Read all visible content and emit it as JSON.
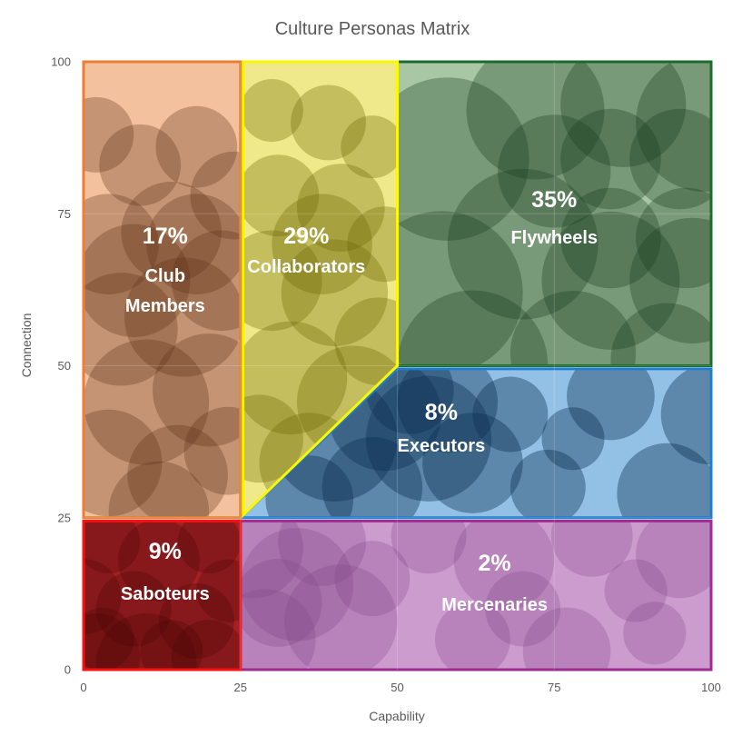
{
  "title": "Culture Personas Matrix",
  "chart_data": {
    "type": "scatter",
    "subtype": "quadrant-bubble-matrix",
    "title": "Culture Personas Matrix",
    "xlabel": "Capability",
    "ylabel": "Connection",
    "xlim": [
      0,
      100
    ],
    "ylim": [
      0,
      100
    ],
    "xticks": [
      "0",
      "25",
      "50",
      "75",
      "100"
    ],
    "yticks": [
      "0",
      "25",
      "50",
      "75",
      "100"
    ],
    "xtick_values": [
      0,
      25,
      50,
      75,
      100
    ],
    "ytick_values": [
      0,
      25,
      50,
      75,
      100
    ],
    "grid": true,
    "legend": "none",
    "regions": [
      {
        "id": "flywheels",
        "name": "Flywheels",
        "percent_label": "35%",
        "share_pct": 35,
        "x_range": [
          50,
          100
        ],
        "y_range": [
          50,
          100
        ],
        "polygon": [
          [
            50,
            50
          ],
          [
            100,
            50
          ],
          [
            100,
            100
          ],
          [
            50,
            100
          ]
        ],
        "fill": "#A9C7A4",
        "border": "#1B6B2D",
        "bubble_color": "#153A1D",
        "bubble_opacity": 0.32,
        "percent_pos": [
          75,
          76.1
        ],
        "name_pos": [
          75,
          70.1
        ],
        "name_lines": [
          "Flywheels"
        ],
        "bubbles": [
          [
            58,
            84,
            13
          ],
          [
            72,
            92,
            11
          ],
          [
            86,
            93,
            10
          ],
          [
            99,
            90,
            11
          ],
          [
            57,
            62,
            13
          ],
          [
            70,
            70,
            12
          ],
          [
            84,
            64,
            11
          ],
          [
            97,
            64,
            10
          ],
          [
            62,
            50,
            12
          ],
          [
            78,
            52,
            10
          ],
          [
            93,
            51,
            9
          ],
          [
            75,
            82,
            9
          ],
          [
            84,
            84,
            8
          ],
          [
            95,
            84,
            8
          ],
          [
            84,
            71,
            8
          ],
          [
            96,
            71,
            8
          ]
        ]
      },
      {
        "id": "executors",
        "name": "Executors",
        "percent_label": "8%",
        "share_pct": 8,
        "x_range": [
          25,
          100
        ],
        "y_range": [
          25,
          50
        ],
        "polygon": [
          [
            25,
            25
          ],
          [
            100,
            25
          ],
          [
            100,
            49.5
          ],
          [
            50,
            49.5
          ]
        ],
        "fill": "#93C1E6",
        "border": "#1E7FD0",
        "bubble_color": "#0D2F52",
        "bubble_opacity": 0.4,
        "percent_pos": [
          57,
          41.1
        ],
        "name_pos": [
          57,
          35.9
        ],
        "name_lines": [
          "Executors"
        ],
        "bubbles": [
          [
            40,
            38,
            10
          ],
          [
            48,
            42,
            9
          ],
          [
            55,
            38,
            10
          ],
          [
            46,
            30,
            8
          ],
          [
            58,
            44,
            8
          ],
          [
            62,
            34,
            8
          ],
          [
            52,
            46,
            7
          ],
          [
            68,
            42,
            6
          ],
          [
            74,
            30,
            6
          ],
          [
            84,
            45,
            7
          ],
          [
            93,
            29,
            8
          ],
          [
            100,
            42,
            8
          ],
          [
            78,
            38,
            5
          ],
          [
            36,
            28,
            7
          ]
        ]
      },
      {
        "id": "collaborators",
        "name": "Collaborators",
        "percent_label": "29%",
        "share_pct": 29,
        "x_range": [
          25,
          50
        ],
        "y_range": [
          25,
          100
        ],
        "polygon": [
          [
            25.4,
            25.4
          ],
          [
            25.4,
            100
          ],
          [
            50,
            100
          ],
          [
            50,
            50
          ]
        ],
        "fill": "#EFE98C",
        "border": "#F8F800",
        "bubble_color": "#6B6300",
        "bubble_opacity": 0.32,
        "percent_pos": [
          35.5,
          70.1
        ],
        "name_pos": [
          35.5,
          65.3
        ],
        "name_lines": [
          "Collaborators"
        ],
        "bubbles": [
          [
            30,
            92,
            5
          ],
          [
            39,
            90,
            6
          ],
          [
            46,
            86,
            5
          ],
          [
            31,
            78,
            6.5
          ],
          [
            41,
            76,
            7
          ],
          [
            48,
            70,
            6
          ],
          [
            30,
            64,
            8
          ],
          [
            40,
            62,
            8.5
          ],
          [
            47,
            54,
            7
          ],
          [
            33,
            48,
            9
          ],
          [
            43,
            44,
            9
          ],
          [
            36,
            34,
            8
          ],
          [
            28,
            38,
            7
          ],
          [
            46,
            36,
            7
          ],
          [
            38,
            70,
            8
          ]
        ]
      },
      {
        "id": "club-members",
        "name": "Club Members",
        "percent_label": "17%",
        "share_pct": 17,
        "x_range": [
          0,
          25
        ],
        "y_range": [
          25,
          100
        ],
        "polygon": [
          [
            0,
            25
          ],
          [
            0,
            100
          ],
          [
            25,
            100
          ],
          [
            25,
            25
          ]
        ],
        "fill": "#F3C19E",
        "border": "#ED7D31",
        "bubble_color": "#5C3014",
        "bubble_opacity": 0.3,
        "percent_pos": [
          13,
          70.1
        ],
        "name_pos": [
          13,
          63.8
        ],
        "name_lines": [
          "Club",
          "Members"
        ],
        "bubbles": [
          [
            2,
            88,
            6
          ],
          [
            9,
            83,
            6.5
          ],
          [
            18,
            86,
            6.5
          ],
          [
            24,
            78,
            7
          ],
          [
            4,
            70,
            8
          ],
          [
            14,
            72,
            8
          ],
          [
            22,
            64,
            8
          ],
          [
            6,
            56,
            9
          ],
          [
            16,
            58,
            9.5
          ],
          [
            10,
            44,
            10
          ],
          [
            20,
            46,
            9
          ],
          [
            4,
            34,
            8.5
          ],
          [
            15,
            32,
            8
          ],
          [
            23,
            36,
            7
          ],
          [
            8,
            64,
            9
          ],
          [
            18,
            70,
            8
          ],
          [
            12,
            26,
            8
          ]
        ]
      },
      {
        "id": "mercenaries",
        "name": "Mercenaries",
        "percent_label": "2%",
        "share_pct": 2,
        "x_range": [
          25,
          100
        ],
        "y_range": [
          0,
          25
        ],
        "polygon": [
          [
            25,
            0
          ],
          [
            100,
            0
          ],
          [
            100,
            24.45
          ],
          [
            25,
            24.45
          ]
        ],
        "fill": "#CD9CCF",
        "border": "#A02B93",
        "bubble_color": "#7E4584",
        "bubble_opacity": 0.28,
        "percent_pos": [
          65.5,
          16.3
        ],
        "name_pos": [
          65.5,
          9.7
        ],
        "name_lines": [
          "Mercenaries"
        ],
        "bubbles": [
          [
            27,
            20,
            8
          ],
          [
            34,
            14,
            9
          ],
          [
            29,
            5,
            8
          ],
          [
            41,
            8,
            9
          ],
          [
            38,
            21,
            7
          ],
          [
            46,
            15,
            6
          ],
          [
            31,
            11,
            7
          ],
          [
            55,
            22,
            6
          ],
          [
            67,
            18,
            8
          ],
          [
            81,
            22,
            6.5
          ],
          [
            95,
            19,
            7
          ],
          [
            62,
            5,
            6
          ],
          [
            77,
            3,
            7
          ],
          [
            91,
            6,
            5
          ],
          [
            70,
            10,
            6
          ],
          [
            88,
            13,
            5
          ]
        ]
      },
      {
        "id": "saboteurs",
        "name": "Saboteurs",
        "percent_label": "9%",
        "share_pct": 9,
        "x_range": [
          0,
          25
        ],
        "y_range": [
          0,
          25
        ],
        "polygon": [
          [
            0,
            0
          ],
          [
            25,
            0
          ],
          [
            25,
            24.45
          ],
          [
            0,
            24.45
          ]
        ],
        "fill": "#A32024",
        "border": "#FA1010",
        "bubble_color": "#4A0505",
        "bubble_opacity": 0.3,
        "percent_pos": [
          13,
          18.2
        ],
        "name_pos": [
          13,
          11.5
        ],
        "name_lines": [
          "Saboteurs"
        ],
        "bubbles": [
          [
            4,
            21,
            5
          ],
          [
            12,
            18,
            6.5
          ],
          [
            20,
            21,
            5
          ],
          [
            8,
            10,
            6
          ],
          [
            18,
            8,
            6
          ],
          [
            3,
            5,
            5
          ],
          [
            23,
            13,
            5
          ],
          [
            14,
            3,
            5
          ],
          [
            2,
            2,
            7
          ],
          [
            10,
            1,
            8
          ],
          [
            20,
            2,
            6
          ],
          [
            0,
            12,
            6
          ]
        ]
      }
    ],
    "colors": {
      "title_text": "#595959",
      "axis_text": "#595959",
      "region_label_text": "#FFFFFF",
      "gridline": "#FFFFFF"
    }
  }
}
